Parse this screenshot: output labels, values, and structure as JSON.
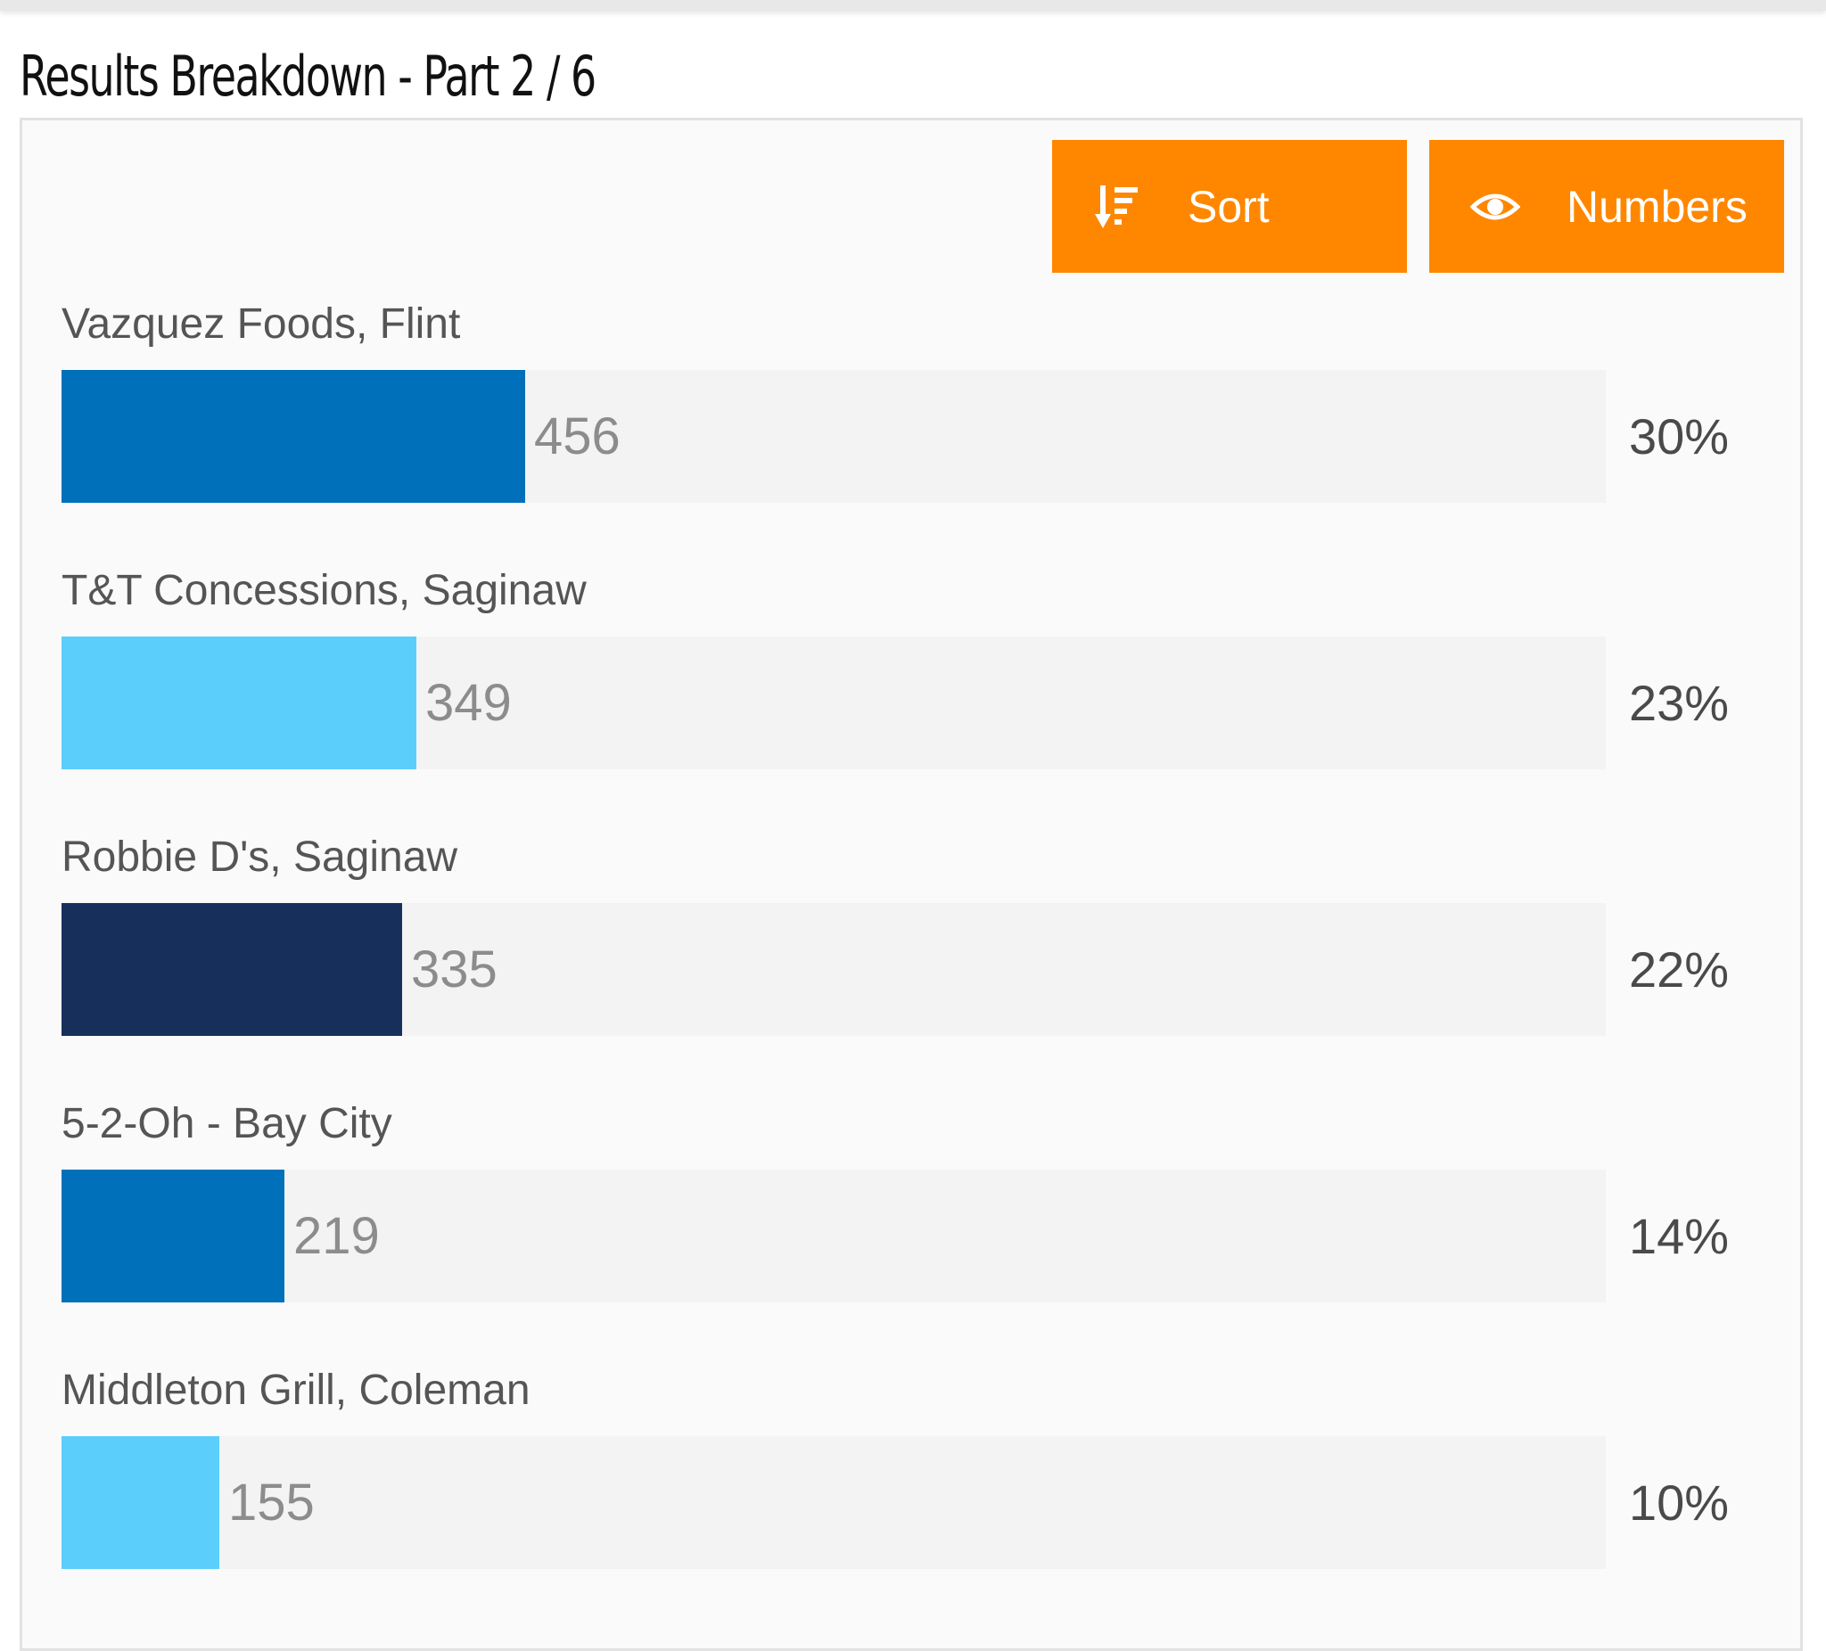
{
  "title": "Results Breakdown - Part 2 / 6",
  "toolbar": {
    "sort_label": "Sort",
    "sort_icon": "sort-descending-icon",
    "numbers_label": "Numbers",
    "numbers_icon": "eye-icon",
    "button_color": "#ff8700"
  },
  "chart_data": {
    "type": "bar",
    "orientation": "horizontal",
    "title": "Results Breakdown - Part 2 / 6",
    "xlabel": "",
    "ylabel": "",
    "xlim": [
      0,
      1520
    ],
    "categories": [
      "Vazquez Foods, Flint",
      "T&T Concessions, Saginaw",
      "Robbie D's, Saginaw",
      "5-2-Oh - Bay City",
      "Middleton Grill, Coleman"
    ],
    "values": [
      456,
      349,
      335,
      219,
      155
    ],
    "value_labels": [
      "456",
      "349",
      "335",
      "219",
      "155"
    ],
    "percent_labels": [
      "30%",
      "23%",
      "22%",
      "14%",
      "10%"
    ],
    "colors": [
      "#0070bb",
      "#5bcefc",
      "#17305b",
      "#0070bb",
      "#5bcefc"
    ],
    "track_color": "#f3f3f3"
  }
}
